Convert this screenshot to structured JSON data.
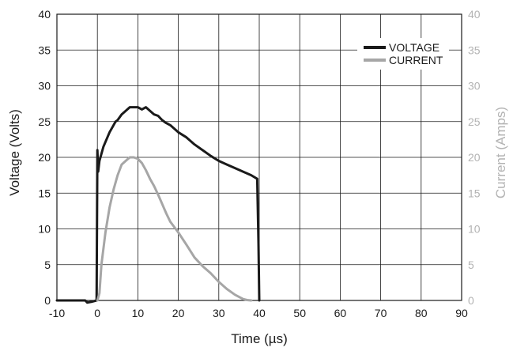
{
  "chart_data": {
    "type": "line",
    "title": "",
    "xlabel": "Time (µs)",
    "ylabel": "Voltage (Volts)",
    "y2label": "Current (Amps)",
    "xlim": [
      -10,
      90
    ],
    "ylim": [
      0,
      40
    ],
    "y2lim": [
      0,
      40
    ],
    "x_ticks": [
      "-10",
      "0",
      "10",
      "20",
      "30",
      "40",
      "50",
      "60",
      "70",
      "80",
      "90"
    ],
    "y_ticks": [
      "0",
      "5",
      "10",
      "15",
      "20",
      "25",
      "30",
      "35",
      "40"
    ],
    "y2_ticks": [
      "0",
      "5",
      "10",
      "15",
      "20",
      "25",
      "30",
      "35",
      "40"
    ],
    "grid": true,
    "legend_position": "top-right",
    "colors": {
      "voltage": "#1a1a1a",
      "current": "#a6a6a6",
      "right_axis": "#b3b3b3"
    },
    "series": [
      {
        "name": "VOLTAGE",
        "axis": "left",
        "x": [
          -10,
          -3,
          -2.5,
          -1.5,
          -0.2,
          0,
          0.2,
          0.5,
          1.5,
          3,
          4.5,
          5,
          6,
          7,
          8,
          9,
          10,
          11,
          12,
          13,
          14,
          15,
          16,
          17,
          18,
          20,
          22,
          24,
          26,
          28,
          30,
          32,
          34,
          36,
          38,
          39.5,
          39.8,
          40
        ],
        "values": [
          0,
          0,
          -0.3,
          -0.2,
          0,
          21,
          18,
          19.5,
          21.5,
          23.5,
          25,
          25.2,
          26,
          26.5,
          27,
          27,
          27,
          26.7,
          27,
          26.5,
          26,
          25.8,
          25.2,
          24.8,
          24.5,
          23.5,
          22.8,
          21.8,
          21,
          20.2,
          19.5,
          19,
          18.5,
          18,
          17.5,
          17,
          8,
          0
        ]
      },
      {
        "name": "CURRENT",
        "axis": "right",
        "x": [
          0,
          0.5,
          1,
          2,
          3,
          4,
          5,
          6,
          7,
          8,
          9,
          10,
          11,
          12,
          13,
          14,
          15,
          16,
          17,
          18,
          20,
          22,
          24,
          26,
          28,
          30,
          32,
          34,
          36,
          37,
          38
        ],
        "values": [
          0,
          1,
          5,
          9.5,
          13,
          15.5,
          17.5,
          19,
          19.5,
          20,
          20,
          19.8,
          19.2,
          18.2,
          17,
          16,
          14.8,
          13.5,
          12.2,
          11,
          9.5,
          7.8,
          6,
          4.8,
          3.8,
          2.6,
          1.6,
          0.8,
          0.2,
          0.05,
          0
        ]
      }
    ]
  }
}
